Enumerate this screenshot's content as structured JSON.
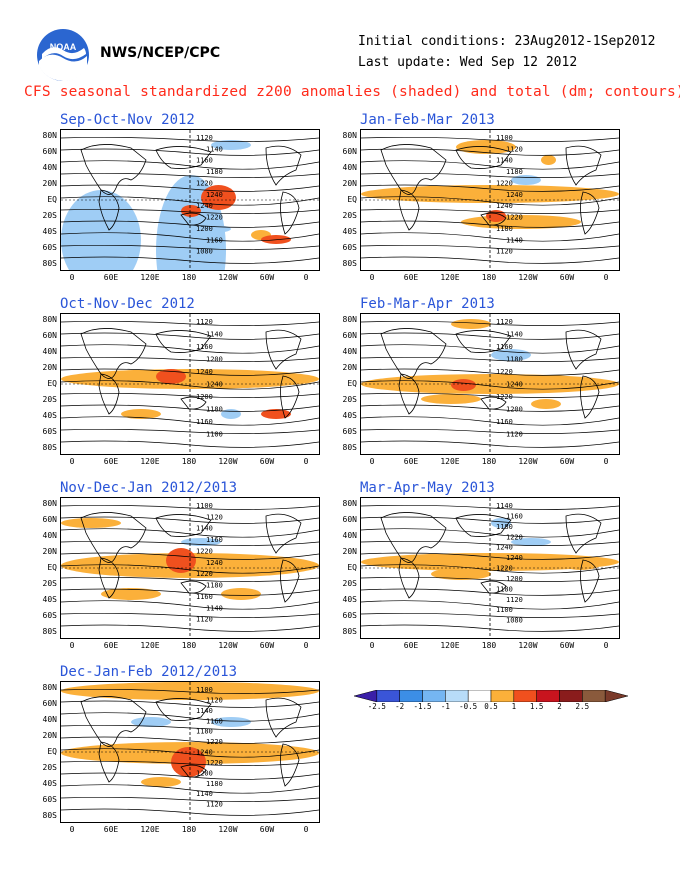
{
  "header": {
    "org": "NWS/NCEP/CPC",
    "initial_conditions": "Initial conditions: 23Aug2012-1Sep2012",
    "last_update": "Last update: Wed Sep 12 2012",
    "main_title": "CFS seasonal standardized z200 anomalies (shaded) and total (dm; contours)",
    "logo": "noaa-logo"
  },
  "axes": {
    "lat_labels": [
      "80N",
      "60N",
      "40N",
      "20N",
      "EQ",
      "20S",
      "40S",
      "60S",
      "80S"
    ],
    "lon_labels": [
      "0",
      "60E",
      "120E",
      "180",
      "120W",
      "60W",
      "0"
    ]
  },
  "panels": [
    {
      "title": "Sep-Oct-Nov 2012",
      "contours": [
        "1120",
        "1140",
        "1160",
        "1180",
        "1220",
        "1240",
        "1240",
        "1220",
        "1200",
        "1160",
        "1080"
      ]
    },
    {
      "title": "Jan-Feb-Mar 2013",
      "contours": [
        "1100",
        "1120",
        "1140",
        "1180",
        "1220",
        "1240",
        "1240",
        "1220",
        "1180",
        "1140",
        "1120"
      ]
    },
    {
      "title": "Oct-Nov-Dec 2012",
      "contours": [
        "1120",
        "1140",
        "1160",
        "1200",
        "1240",
        "1240",
        "1200",
        "1180",
        "1160",
        "1100"
      ]
    },
    {
      "title": "Feb-Mar-Apr 2013",
      "contours": [
        "1120",
        "1140",
        "1160",
        "1180",
        "1220",
        "1240",
        "1220",
        "1200",
        "1160",
        "1120"
      ]
    },
    {
      "title": "Nov-Dec-Jan 2012/2013",
      "contours": [
        "1100",
        "1120",
        "1140",
        "1160",
        "1220",
        "1240",
        "1220",
        "1180",
        "1160",
        "1140",
        "1120"
      ]
    },
    {
      "title": "Mar-Apr-May 2013",
      "contours": [
        "1140",
        "1160",
        "1180",
        "1220",
        "1240",
        "1240",
        "1220",
        "1200",
        "1180",
        "1120",
        "1100",
        "1080"
      ]
    },
    {
      "title": "Dec-Jan-Feb 2012/2013",
      "contours": [
        "1100",
        "1120",
        "1140",
        "1160",
        "1180",
        "1220",
        "1240",
        "1220",
        "1200",
        "1180",
        "1140",
        "1120"
      ]
    }
  ],
  "colorbar": {
    "labels": [
      "-2.5",
      "-2",
      "-1.5",
      "-1",
      "-0.5",
      "0.5",
      "1",
      "1.5",
      "2",
      "2.5"
    ],
    "colors": [
      "#3a1fa8",
      "#3a55d8",
      "#3c8ee6",
      "#75b6f2",
      "#b8dcf8",
      "#ffffff",
      "#fbb03a",
      "#f0501e",
      "#c8141e",
      "#8a1c1c",
      "#8a5a3c",
      "#7a3a2a"
    ]
  },
  "colors": {
    "title_red": "#ff2a1a",
    "panel_title_blue": "#2a55d8",
    "pos_anom": "#fbb03a",
    "strong_pos": "#f0501e",
    "neg_anom": "#9fcdf5"
  }
}
